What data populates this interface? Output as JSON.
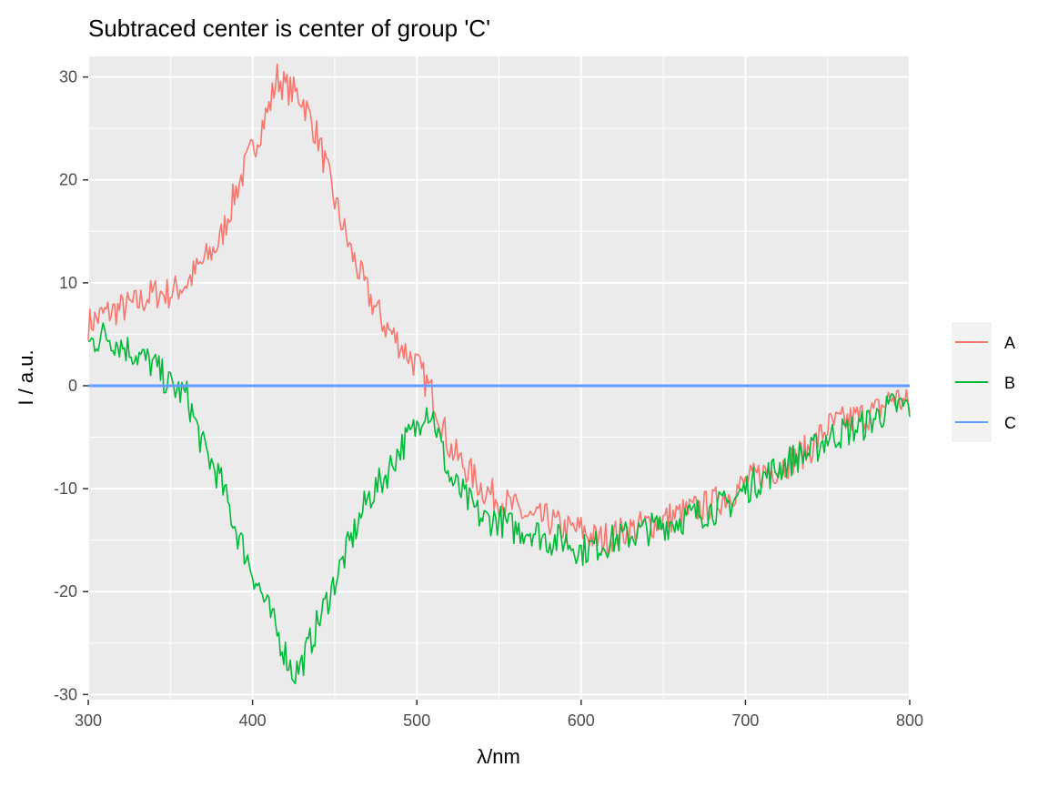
{
  "chart_data": {
    "type": "line",
    "title": "Subtraced center is center of group 'C'",
    "xlabel": "λ/nm",
    "ylabel": "I / a.u.",
    "xlim": [
      300,
      800
    ],
    "ylim": [
      -30.5,
      32
    ],
    "xticks": [
      300,
      400,
      500,
      600,
      700,
      800
    ],
    "yticks": [
      -30,
      -20,
      -10,
      0,
      10,
      20,
      30
    ],
    "grid": true,
    "legend": "right",
    "series": [
      {
        "name": "A",
        "color": "#F8766D",
        "x": [
          300,
          310,
          320,
          330,
          340,
          350,
          360,
          370,
          380,
          390,
          400,
          410,
          415,
          420,
          430,
          440,
          450,
          460,
          470,
          480,
          490,
          500,
          510,
          520,
          530,
          540,
          550,
          560,
          570,
          580,
          590,
          600,
          610,
          620,
          630,
          640,
          650,
          660,
          670,
          680,
          690,
          700,
          710,
          720,
          730,
          740,
          750,
          760,
          770,
          780,
          790,
          800
        ],
        "y": [
          6,
          7,
          7.5,
          8,
          9,
          9,
          10,
          12,
          14,
          19,
          23,
          27,
          30,
          29,
          28,
          24,
          18,
          13,
          9,
          6,
          4,
          2,
          -1,
          -6,
          -8,
          -10,
          -11,
          -12,
          -13,
          -13,
          -14,
          -14,
          -15,
          -14.5,
          -14,
          -13.5,
          -13,
          -12.5,
          -12,
          -11.5,
          -10.5,
          -9.5,
          -8.5,
          -8,
          -7,
          -6,
          -4,
          -3.5,
          -3,
          -2.5,
          -1,
          -2
        ]
      },
      {
        "name": "B",
        "color": "#00BA38",
        "x": [
          300,
          310,
          320,
          330,
          340,
          350,
          360,
          370,
          380,
          390,
          400,
          410,
          420,
          425,
          430,
          440,
          450,
          460,
          470,
          480,
          490,
          500,
          505,
          510,
          520,
          530,
          540,
          550,
          560,
          570,
          580,
          590,
          600,
          610,
          620,
          630,
          640,
          650,
          660,
          670,
          680,
          690,
          700,
          710,
          720,
          730,
          740,
          750,
          760,
          770,
          780,
          790,
          800
        ],
        "y": [
          4,
          5,
          4,
          3,
          2,
          0,
          -1,
          -6,
          -9,
          -14,
          -18,
          -22,
          -26,
          -28,
          -27,
          -23,
          -19,
          -15,
          -11,
          -9,
          -6,
          -4,
          -2,
          -3,
          -9,
          -11,
          -13,
          -13,
          -14,
          -14,
          -15,
          -15,
          -16,
          -15.5,
          -15,
          -14.5,
          -14,
          -13.5,
          -13,
          -12.5,
          -12,
          -11.5,
          -10,
          -9,
          -8,
          -7,
          -6.5,
          -5,
          -4.5,
          -4,
          -3,
          -2,
          -2
        ]
      },
      {
        "name": "C",
        "color": "#619CFF",
        "x": [
          300,
          800
        ],
        "y": [
          0,
          0
        ]
      }
    ]
  }
}
